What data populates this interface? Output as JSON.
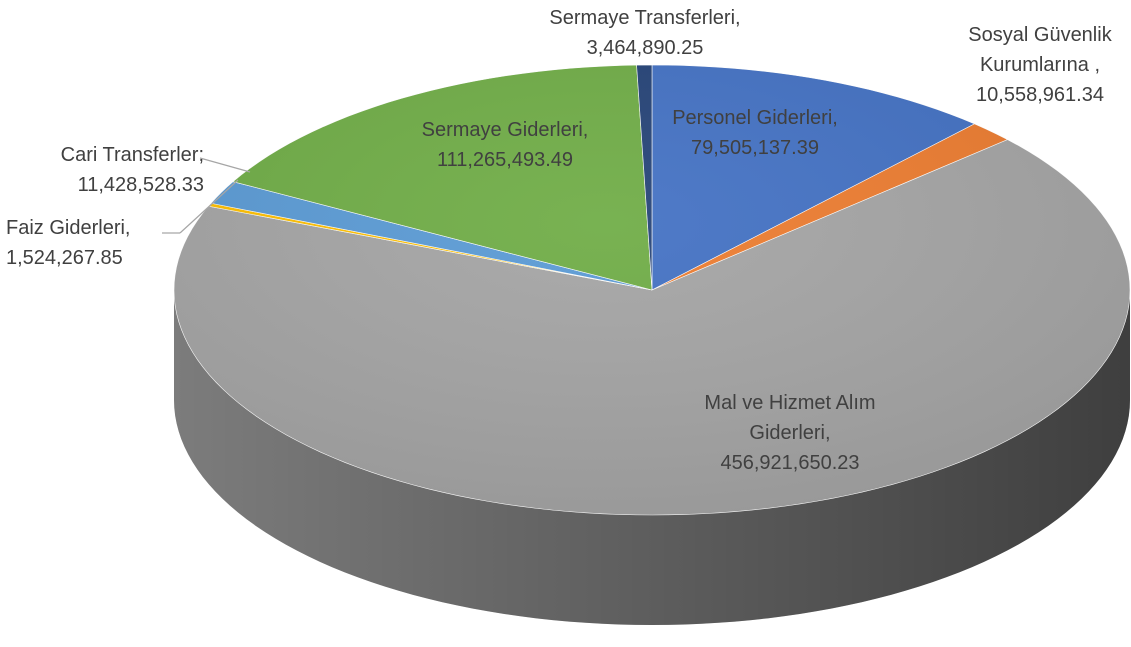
{
  "chart_data": {
    "type": "pie",
    "categories": [
      "Personel Giderleri,",
      "Sosyal Güvenlik Kurumlarına ,",
      "Mal ve Hizmet Alım Giderleri,",
      "Faiz Giderleri,",
      "Cari Transferler;",
      "Sermaye Giderleri,",
      "Sermaye Transferleri,"
    ],
    "values": [
      79505137.39,
      10558961.34,
      456921650.23,
      1524267.85,
      11428528.33,
      111265493.49,
      3464890.25
    ],
    "value_labels": [
      "79,505,137.39",
      "10,558,961.34",
      "456,921,650.23",
      "1,524,267.85",
      "11,428,528.33",
      "111,265,493.49",
      "3,464,890.25"
    ],
    "colors": [
      "#4472c4",
      "#ed7d31",
      "#a5a5a5",
      "#ffc000",
      "#5b9bd5",
      "#70ad47",
      "#264478"
    ]
  }
}
